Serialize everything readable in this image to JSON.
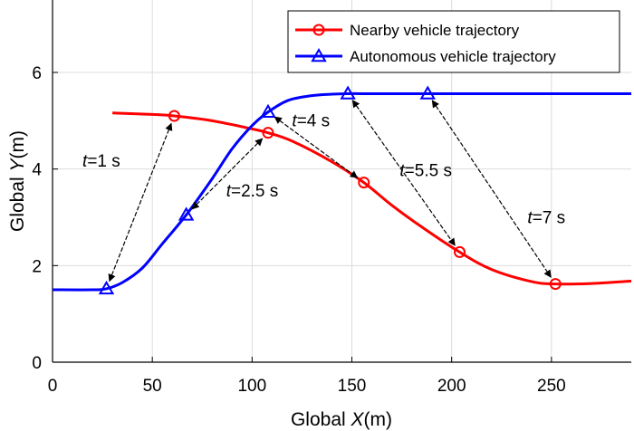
{
  "chart_data": {
    "type": "line",
    "xlabel": "Global X(m)",
    "ylabel": "Global Y(m)",
    "xlim": [
      0,
      290
    ],
    "ylim": [
      0,
      7.5
    ],
    "xticks": [
      "0",
      "50",
      "100",
      "150",
      "200",
      "250"
    ],
    "yticks": [
      "0",
      "2",
      "4",
      "6"
    ],
    "grid": true,
    "legend_position": "top-right",
    "colors": {
      "nearby": "#ff0000",
      "autonomous": "#0000ff"
    },
    "series": [
      {
        "name": "Nearby vehicle trajectory",
        "marker": "circle",
        "color": "#ff0000",
        "x": [
          30,
          50,
          61,
          80,
          100,
          108,
          120,
          140,
          156,
          170,
          185,
          204,
          220,
          240,
          252,
          270,
          290
        ],
        "y": [
          5.16,
          5.13,
          5.1,
          5.0,
          4.83,
          4.75,
          4.58,
          4.15,
          3.72,
          3.25,
          2.8,
          2.28,
          1.92,
          1.67,
          1.62,
          1.63,
          1.68
        ],
        "markers": [
          [
            61,
            5.1
          ],
          [
            108,
            4.75
          ],
          [
            156,
            3.72
          ],
          [
            204,
            2.28
          ],
          [
            252,
            1.62
          ]
        ]
      },
      {
        "name": "Autonomous vehicle trajectory",
        "marker": "triangle",
        "color": "#0000ff",
        "x": [
          0,
          20,
          27,
          35,
          45,
          55,
          67,
          80,
          90,
          100,
          108,
          118,
          130,
          140,
          148,
          160,
          188,
          290
        ],
        "y": [
          1.5,
          1.5,
          1.52,
          1.65,
          1.95,
          2.45,
          3.05,
          3.8,
          4.42,
          4.9,
          5.18,
          5.42,
          5.52,
          5.55,
          5.56,
          5.56,
          5.56,
          5.56
        ],
        "markers": [
          [
            27,
            1.52
          ],
          [
            67,
            3.05
          ],
          [
            108,
            5.18
          ],
          [
            148,
            5.56
          ],
          [
            188,
            5.56
          ]
        ]
      }
    ],
    "annotations": [
      {
        "t": "t",
        "rest": "=1 s",
        "x": 15,
        "y": 4.05,
        "from": [
          61,
          5.1
        ],
        "to": [
          27,
          1.52
        ]
      },
      {
        "t": "t",
        "rest": "=2.5 s",
        "x": 87,
        "y": 3.43,
        "from": [
          108,
          4.75
        ],
        "to": [
          67,
          3.05
        ]
      },
      {
        "t": "t",
        "rest": "=4 s",
        "x": 120,
        "y": 4.88,
        "from": [
          108,
          5.18
        ],
        "to": [
          156,
          3.72
        ]
      },
      {
        "t": "t",
        "rest": "=5.5 s",
        "x": 174,
        "y": 3.85,
        "from": [
          148,
          5.56
        ],
        "to": [
          204,
          2.28
        ]
      },
      {
        "t": "t",
        "rest": "=7 s",
        "x": 238,
        "y": 2.88,
        "from": [
          188,
          5.56
        ],
        "to": [
          252,
          1.62
        ]
      }
    ]
  }
}
